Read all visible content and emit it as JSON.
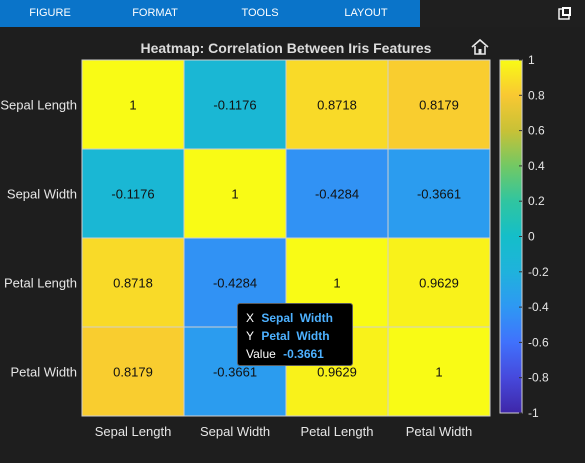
{
  "menu": {
    "items": [
      "FIGURE",
      "FORMAT",
      "TOOLS",
      "LAYOUT"
    ]
  },
  "icons": {
    "popout": "popout-icon",
    "home": "home-icon"
  },
  "tooltip": {
    "x_label": "X",
    "x_value": "Sepal Width",
    "y_label": "Y",
    "y_value": "Petal Width",
    "value_label": "Value",
    "value": "-0.3661"
  },
  "chart_data": {
    "type": "heatmap",
    "title": "Heatmap: Correlation Between Iris Features",
    "x_categories": [
      "Sepal Length",
      "Sepal Width",
      "Petal Length",
      "Petal Width"
    ],
    "y_categories": [
      "Sepal Length",
      "Sepal Width",
      "Petal Length",
      "Petal Width"
    ],
    "values": [
      [
        1,
        -0.1176,
        0.8718,
        0.8179
      ],
      [
        -0.1176,
        1,
        -0.4284,
        -0.3661
      ],
      [
        0.8718,
        -0.4284,
        1,
        0.9629
      ],
      [
        0.8179,
        -0.3661,
        0.9629,
        1
      ]
    ],
    "value_labels": [
      [
        "1",
        "-0.1176",
        "0.8718",
        "0.8179"
      ],
      [
        "-0.1176",
        "1",
        "-0.4284",
        "-0.3661"
      ],
      [
        "0.8718",
        "-0.4284",
        "1",
        "0.9629"
      ],
      [
        "0.8179",
        "-0.3661",
        "0.9629",
        "1"
      ]
    ],
    "colorbar": {
      "range": [
        -1,
        1
      ],
      "ticks": [
        1,
        0.8,
        0.6,
        0.4,
        0.2,
        0,
        -0.2,
        -0.4,
        -0.6,
        -0.8,
        -1
      ],
      "tick_labels": [
        "1",
        "0.8",
        "0.6",
        "0.4",
        "0.2",
        "0",
        "-0.2",
        "-0.4",
        "-0.6",
        "-0.8",
        "-1"
      ],
      "colormap": "parula"
    }
  }
}
